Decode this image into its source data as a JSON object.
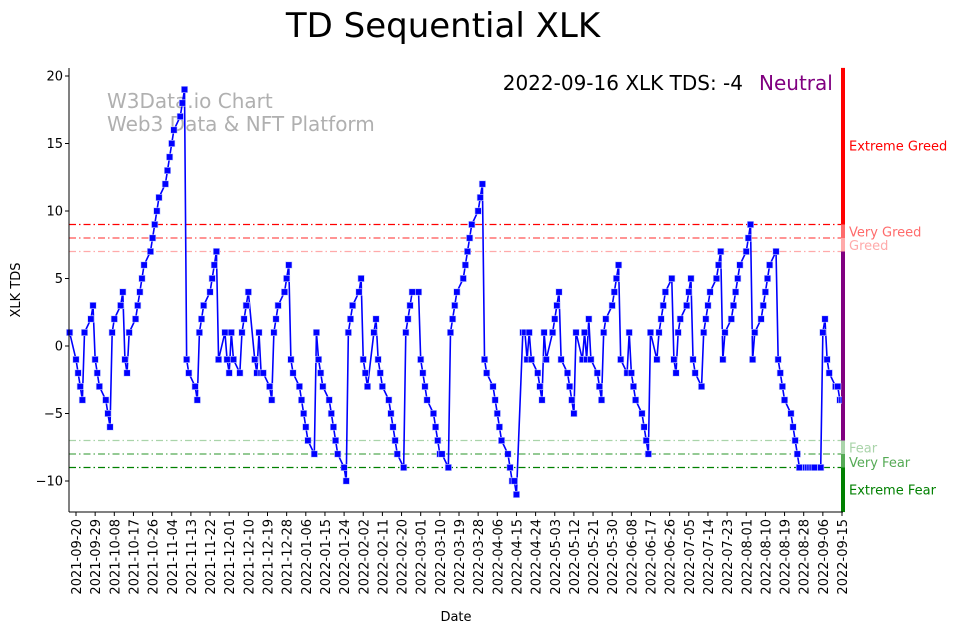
{
  "chart_data": {
    "type": "line",
    "title": "TD Sequential XLK",
    "xlabel": "Date",
    "ylabel": "XLK TDS",
    "ylim": [
      -12.3,
      20.6
    ],
    "xlim": [
      "2021-09-17",
      "2022-09-16"
    ],
    "yticks": [
      -10,
      -5,
      0,
      5,
      10,
      15,
      20
    ],
    "xtick_start": "2021-09-20",
    "xtick_step_days": 9,
    "xticks": [
      "2021-09-20",
      "2021-09-29",
      "2021-10-08",
      "2021-10-17",
      "2021-10-26",
      "2021-11-04",
      "2021-11-13",
      "2021-11-22",
      "2021-12-01",
      "2021-12-10",
      "2021-12-19",
      "2021-12-28",
      "2022-01-06",
      "2022-01-15",
      "2022-01-24",
      "2022-02-02",
      "2022-02-11",
      "2022-02-20",
      "2022-03-01",
      "2022-03-10",
      "2022-03-19",
      "2022-03-28",
      "2022-04-06",
      "2022-04-15",
      "2022-04-24",
      "2022-05-03",
      "2022-05-12",
      "2022-05-21",
      "2022-05-30",
      "2022-06-08",
      "2022-06-17",
      "2022-06-26",
      "2022-07-05",
      "2022-07-14",
      "2022-07-23",
      "2022-08-01",
      "2022-08-10",
      "2022-08-19",
      "2022-08-28",
      "2022-09-06",
      "2022-09-15"
    ],
    "grid": false,
    "series": [
      {
        "name": "XLK TDS",
        "color": "#0000ff",
        "start_date": "2021-09-17",
        "frequency": "business-days",
        "values": [
          1,
          -1,
          -2,
          -3,
          -4,
          1,
          2,
          3,
          -1,
          -2,
          -3,
          -4,
          -5,
          -6,
          1,
          2,
          3,
          4,
          -1,
          -2,
          1,
          2,
          3,
          4,
          5,
          6,
          7,
          8,
          9,
          10,
          11,
          12,
          13,
          14,
          15,
          16,
          17,
          18,
          19,
          -1,
          -2,
          -3,
          -4,
          1,
          2,
          3,
          4,
          5,
          6,
          7,
          -1,
          1,
          -1,
          -2,
          1,
          -1,
          -2,
          1,
          2,
          3,
          4,
          -1,
          -2,
          1,
          -2,
          -2,
          -3,
          -4,
          1,
          2,
          3,
          4,
          5,
          6,
          -1,
          -2,
          -3,
          -4,
          -5,
          -6,
          -7,
          -8,
          1,
          -1,
          -2,
          -3,
          -4,
          -5,
          -6,
          -7,
          -8,
          -9,
          -10,
          1,
          2,
          3,
          4,
          5,
          -1,
          -2,
          -3,
          1,
          2,
          -1,
          -2,
          -3,
          -4,
          -5,
          -6,
          -7,
          -8,
          -9,
          1,
          2,
          3,
          4,
          4,
          -1,
          -2,
          -3,
          -4,
          -5,
          -6,
          -7,
          -8,
          -8,
          -9,
          1,
          2,
          3,
          4,
          5,
          6,
          7,
          8,
          9,
          10,
          11,
          12,
          -1,
          -2,
          -3,
          -4,
          -5,
          -6,
          -7,
          -8,
          -9,
          -10,
          -10,
          -11,
          1,
          1,
          -1,
          1,
          -1,
          -2,
          -3,
          -4,
          1,
          -1,
          1,
          2,
          3,
          4,
          -1,
          -2,
          -3,
          -4,
          -5,
          1,
          -1,
          1,
          -1,
          2,
          -1,
          -2,
          -3,
          -4,
          1,
          2,
          3,
          4,
          5,
          6,
          -1,
          -2,
          1,
          -2,
          -3,
          -4,
          -5,
          -6,
          -7,
          -8,
          1,
          -1,
          1,
          2,
          3,
          4,
          5,
          -1,
          -2,
          1,
          2,
          3,
          4,
          5,
          -1,
          -2,
          -3,
          1,
          2,
          3,
          4,
          5,
          6,
          7,
          -1,
          1,
          2,
          3,
          4,
          5,
          6,
          7,
          8,
          9,
          -1,
          1,
          2,
          3,
          4,
          5,
          6,
          7,
          -1,
          -2,
          -3,
          -4,
          -5,
          -6,
          -7,
          -8,
          -9,
          -9,
          -9,
          -9,
          -9,
          -9,
          -9,
          1,
          2,
          -1,
          -2,
          -3,
          -3,
          -4,
          -4,
          -4
        ]
      }
    ],
    "thresholds": [
      {
        "label": "Very Greed",
        "value": 9,
        "color": "#ff0000"
      },
      {
        "label": "Greed",
        "value": 8,
        "color": "#ff5555"
      },
      {
        "label": "",
        "value": 7,
        "color": "#ffaaaa"
      },
      {
        "label": "",
        "value": -7,
        "color": "#aad4aa"
      },
      {
        "label": "",
        "value": -8,
        "color": "#55aa55"
      },
      {
        "label": "",
        "value": -9,
        "color": "#008000"
      }
    ],
    "zones": [
      {
        "label": "Extreme Greed",
        "from": 9,
        "to": 20.6,
        "color": "#ff0000"
      },
      {
        "label": "Very Greed",
        "from": 8,
        "to": 9,
        "color": "#ff6b6b"
      },
      {
        "label": "Greed",
        "from": 7,
        "to": 8,
        "color": "#ffaaaa"
      },
      {
        "label": "",
        "from": -7,
        "to": 7,
        "color": "#800080"
      },
      {
        "label": "Fear",
        "from": -8,
        "to": -7,
        "color": "#aad4aa"
      },
      {
        "label": "Very Fear",
        "from": -9,
        "to": -8,
        "color": "#55aa55"
      },
      {
        "label": "Extreme Fear",
        "from": -12.3,
        "to": -9,
        "color": "#008000"
      }
    ],
    "annotation": {
      "text": "2022-09-16 XLK TDS: -4",
      "status": "Neutral",
      "status_color": "#800080"
    },
    "watermark": [
      "W3Data.io Chart",
      "Web3 Data & NFT Platform"
    ]
  }
}
